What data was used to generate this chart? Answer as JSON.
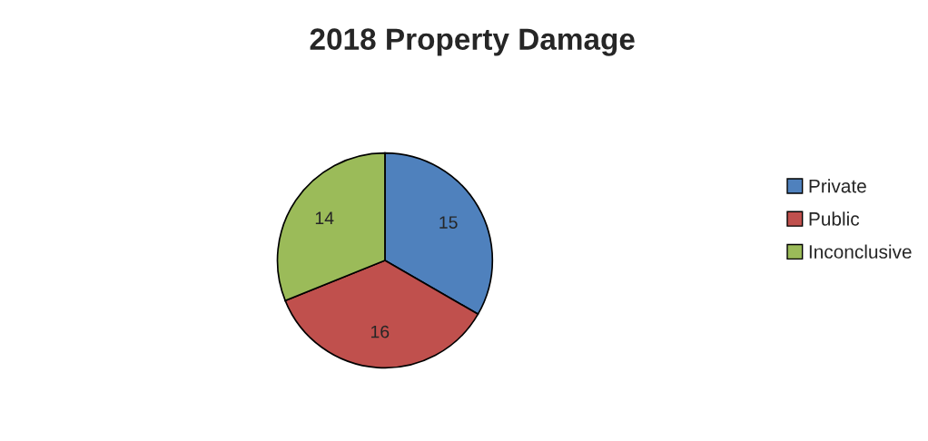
{
  "chart_data": {
    "type": "pie",
    "title": "2018 Property Damage",
    "categories": [
      "Private",
      "Public",
      "Inconclusive"
    ],
    "values": [
      15,
      16,
      14
    ],
    "colors": [
      "#4f81bd",
      "#c0504d",
      "#9bbb59"
    ],
    "data_labels": true,
    "legend": "right"
  }
}
